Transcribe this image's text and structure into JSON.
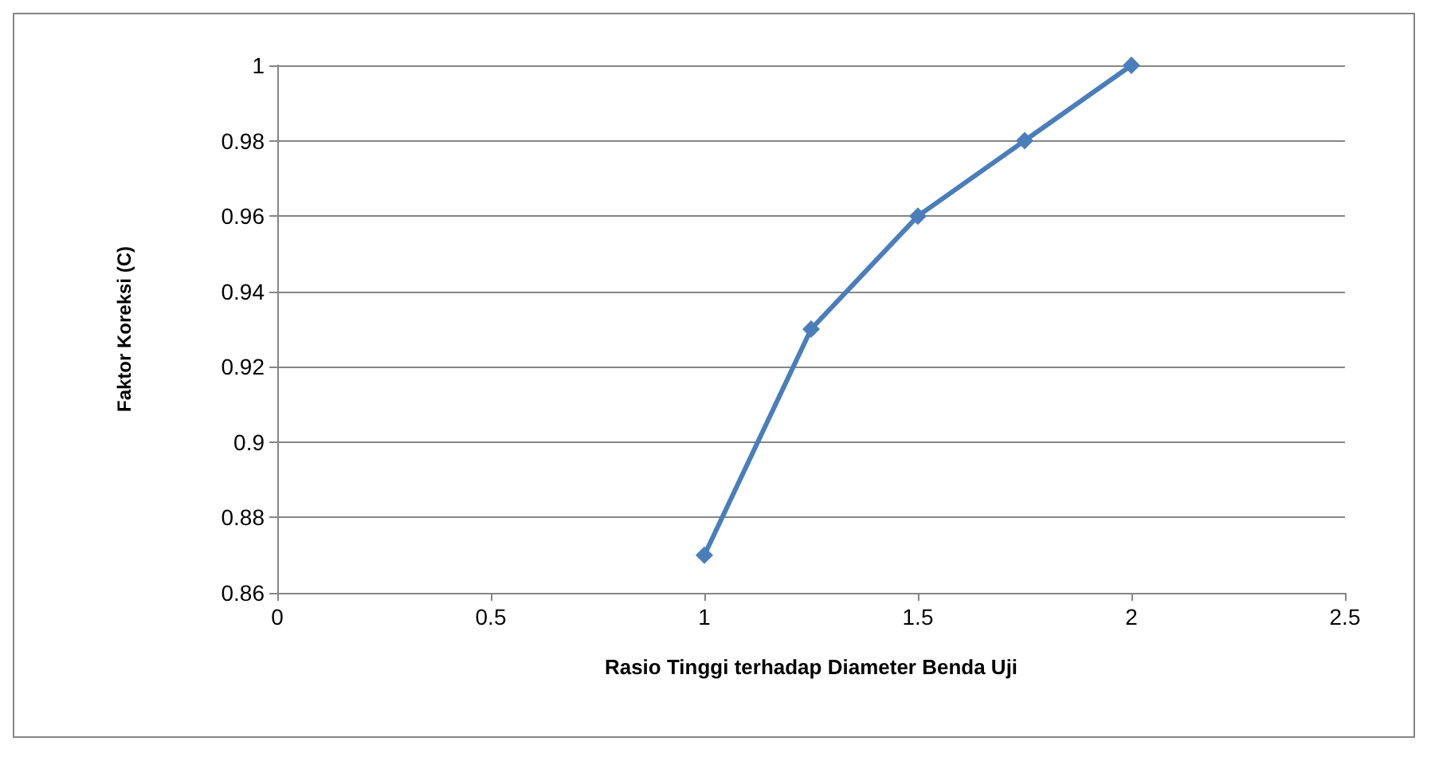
{
  "chart_data": {
    "type": "line",
    "xlabel": "Rasio Tinggi terhadap Diameter Benda Uji",
    "ylabel": "Faktor Koreksi (C)",
    "x": [
      1,
      1.25,
      1.5,
      1.75,
      2
    ],
    "series": [
      {
        "color": "#4a7ebb",
        "values": [
          0.87,
          0.93,
          0.96,
          0.98,
          1
        ]
      }
    ],
    "xlim": [
      0,
      2.5
    ],
    "xticks": [
      0,
      0.5,
      1,
      1.5,
      2,
      2.5
    ],
    "ylim": [
      0.86,
      1
    ],
    "yticks": [
      0.86,
      0.88,
      0.9,
      0.92,
      0.94,
      0.96,
      0.98,
      1
    ],
    "grid": "y",
    "marker": "diamond",
    "line_style": "solid"
  }
}
